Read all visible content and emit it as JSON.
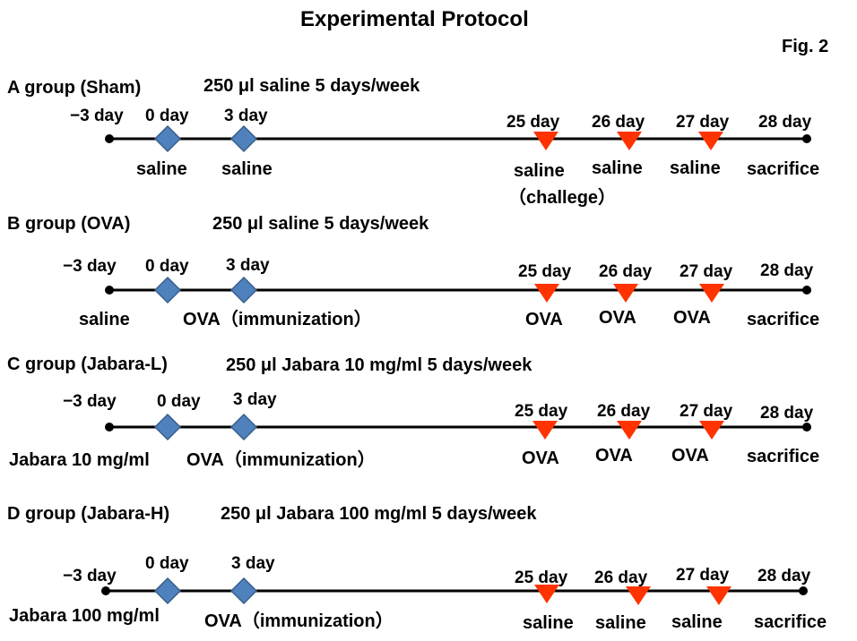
{
  "title": "Experimental Protocol",
  "figure_label": "Fig. 2",
  "colors": {
    "timeline": "#000000",
    "diamond_fill": "#4F81BD",
    "diamond_stroke": "#385D8A",
    "triangle_fill": "#FF3300"
  },
  "icons": {
    "start_marker": "dot-icon",
    "injection_marker": "diamond-icon",
    "challenge_marker": "down-triangle-icon",
    "end_marker": "dot-icon"
  },
  "groups": [
    {
      "name": "A group (Sham)",
      "dose": "250 μl saline 5 days/week",
      "days": {
        "m3": "−3 day",
        "d0": "0 day",
        "d3": "3 day",
        "d25": "25 day",
        "d26": "26 day",
        "d27": "27 day",
        "d28": "28 day"
      },
      "labels": {
        "m3": "",
        "d0": "saline",
        "d3": "saline",
        "d25": "saline",
        "d25_line2": "（challege）",
        "d26": "saline",
        "d27": "saline",
        "d28": "sacrifice"
      }
    },
    {
      "name": "B group (OVA)",
      "dose": "250 μl saline 5 days/week",
      "days": {
        "m3": "−3 day",
        "d0": "0 day",
        "d3": "3 day",
        "d25": "25 day",
        "d26": "26 day",
        "d27": "27 day",
        "d28": "28 day"
      },
      "labels": {
        "m3": "saline",
        "d3": "OVA（immunization）",
        "d25": "OVA",
        "d26": "OVA",
        "d27": "OVA",
        "d28": "sacrifice"
      }
    },
    {
      "name": "C group (Jabara-L)",
      "dose": "250 μl Jabara 10 mg/ml 5 days/week",
      "days": {
        "m3": "−3 day",
        "d0": "0 day",
        "d3": "3 day",
        "d25": "25 day",
        "d26": "26 day",
        "d27": "27 day",
        "d28": "28 day"
      },
      "labels": {
        "m3": "Jabara 10 mg/ml",
        "d3": "OVA（immunization）",
        "d25": "OVA",
        "d26": "OVA",
        "d27": "OVA",
        "d28": "sacrifice"
      }
    },
    {
      "name": "D group (Jabara-H)",
      "dose": "250 μl Jabara 100 mg/ml 5 days/week",
      "days": {
        "m3": "−3 day",
        "d0": "0 day",
        "d3": "3 day",
        "d25": "25 day",
        "d26": "26 day",
        "d27": "27 day",
        "d28": "28 day"
      },
      "labels": {
        "m3": "Jabara 100 mg/ml",
        "d3": "OVA（immunization）",
        "d25": "saline",
        "d26": "saline",
        "d27": "saline",
        "d28": "sacrifice"
      }
    }
  ]
}
